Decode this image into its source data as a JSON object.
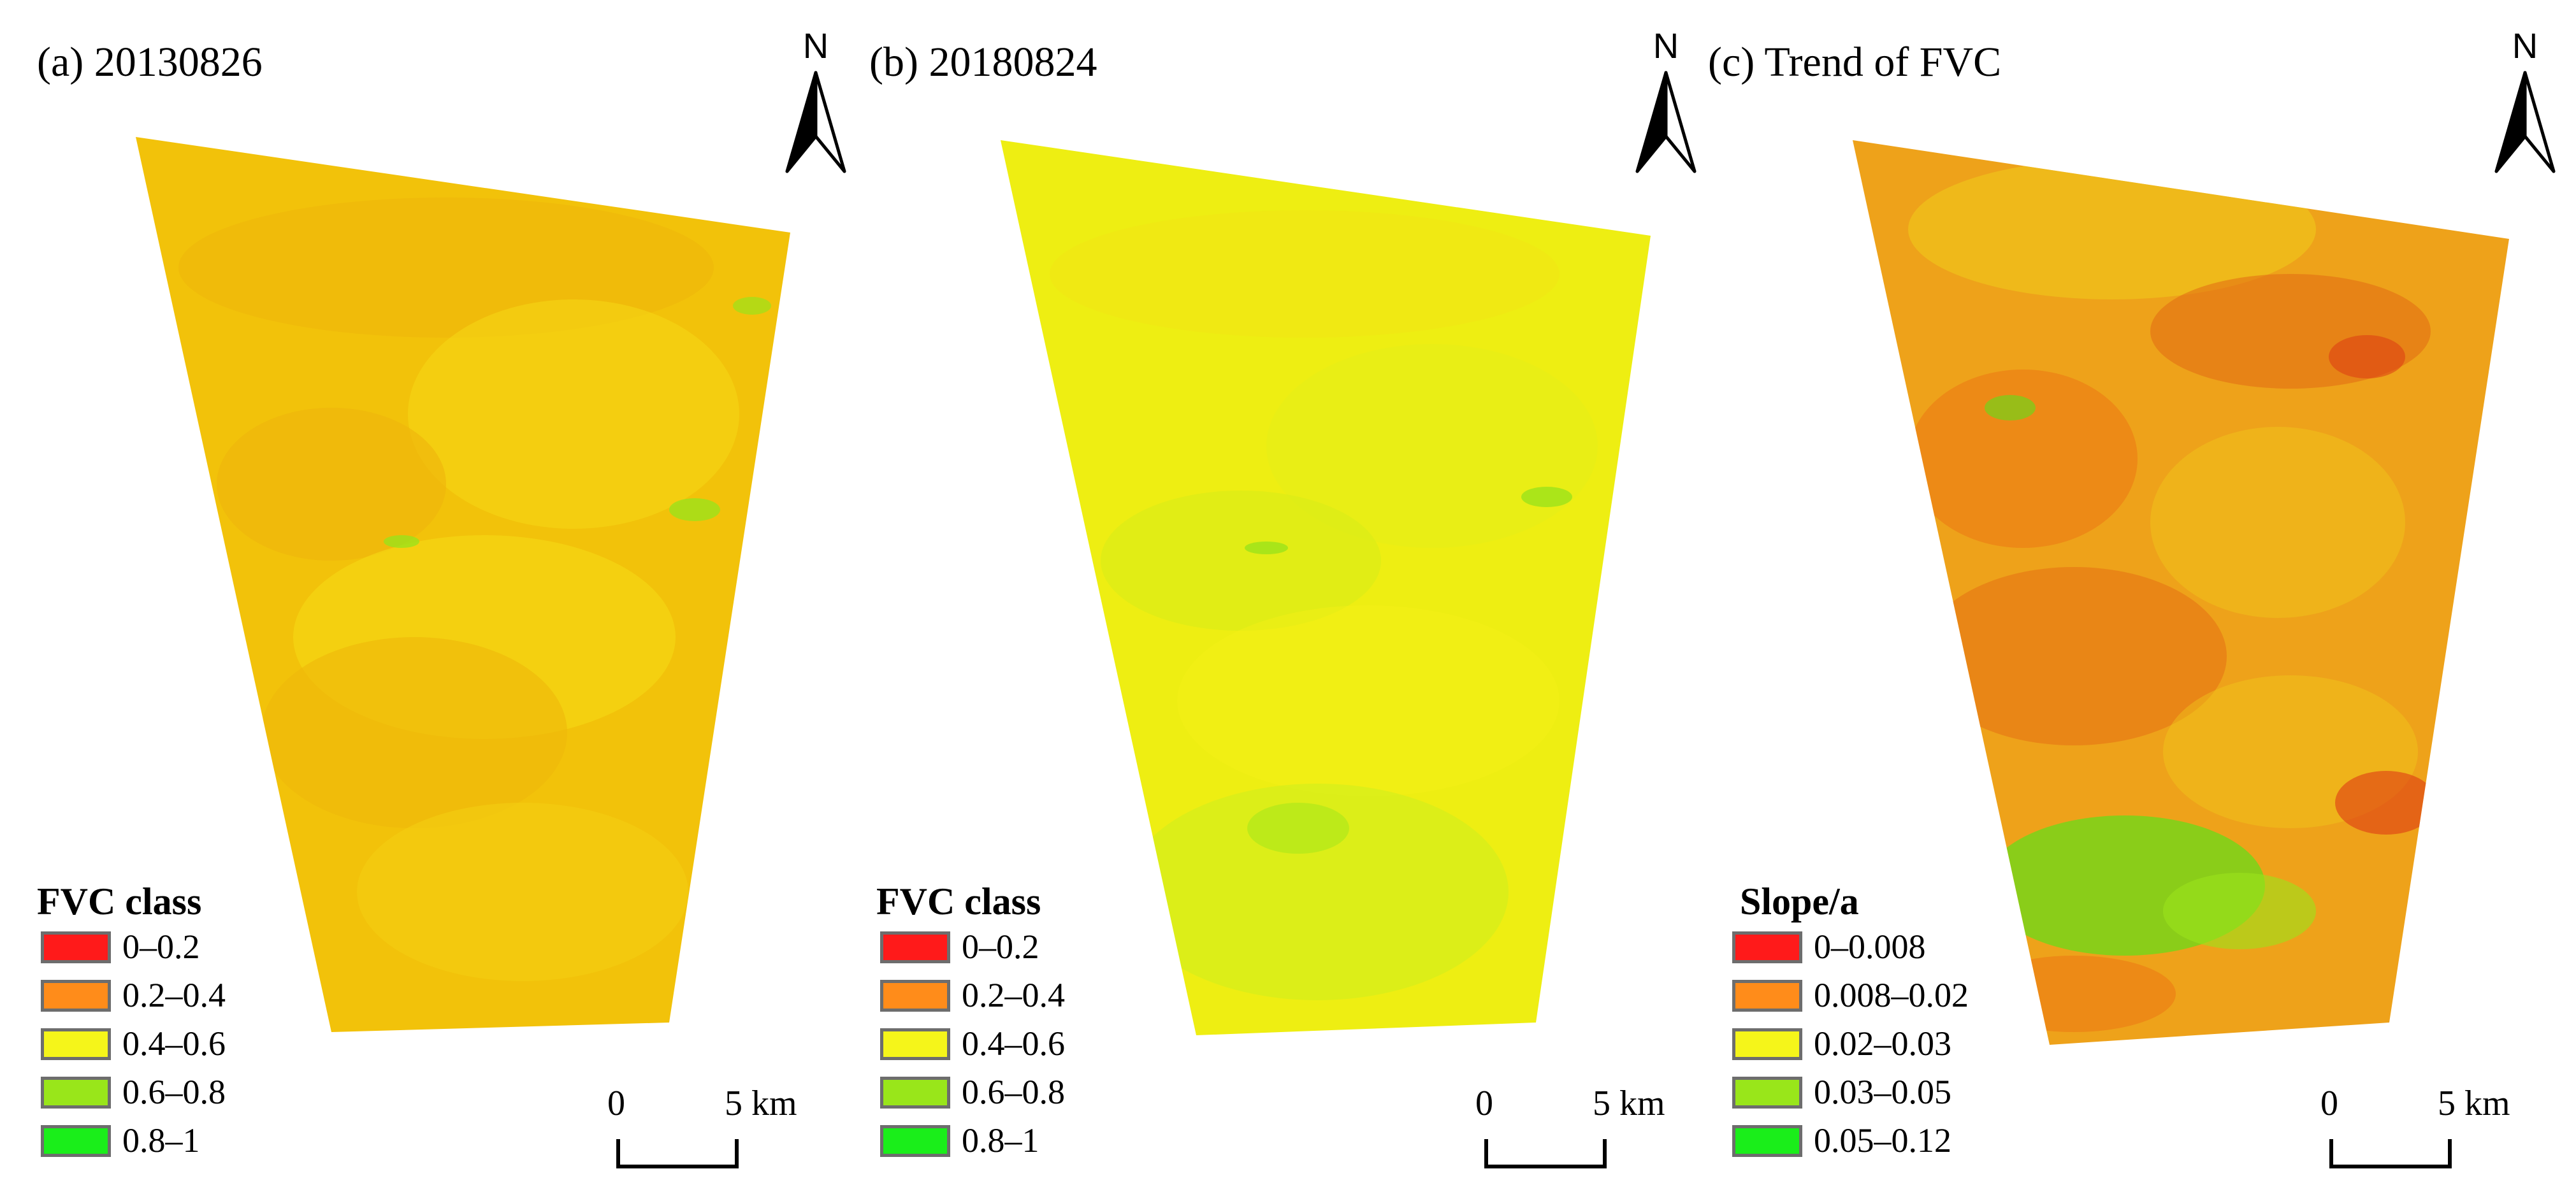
{
  "panels": [
    {
      "title": "(a) 20130826",
      "north_label": "N",
      "legend": {
        "title": "FVC class",
        "items": [
          {
            "label": "0–0.2",
            "color": "#ff1a1a"
          },
          {
            "label": "0.2–0.4",
            "color": "#ff8c1a"
          },
          {
            "label": "0.4–0.6",
            "color": "#f5f51a"
          },
          {
            "label": "0.6–0.8",
            "color": "#99e61a"
          },
          {
            "label": "0.8–1",
            "color": "#1aee1a"
          }
        ]
      },
      "scalebar": {
        "zero": "0",
        "end": "5 km"
      },
      "map": {
        "base_color": "#f2c20a",
        "dominant_class": "0.2–0.4 / 0.4–0.6"
      }
    },
    {
      "title": "(b) 20180824",
      "north_label": "N",
      "legend": {
        "title": "FVC class",
        "items": [
          {
            "label": "0–0.2",
            "color": "#ff1a1a"
          },
          {
            "label": "0.2–0.4",
            "color": "#ff8c1a"
          },
          {
            "label": "0.4–0.6",
            "color": "#f5f51a"
          },
          {
            "label": "0.6–0.8",
            "color": "#99e61a"
          },
          {
            "label": "0.8–1",
            "color": "#1aee1a"
          }
        ]
      },
      "scalebar": {
        "zero": "0",
        "end": "5 km"
      },
      "map": {
        "base_color": "#eeee12",
        "dominant_class": "0.4–0.6"
      }
    },
    {
      "title": "(c) Trend of FVC",
      "north_label": "N",
      "legend": {
        "title": "Slope/a",
        "items": [
          {
            "label": "0–0.008",
            "color": "#ff1a1a"
          },
          {
            "label": "0.008–0.02",
            "color": "#ff8c1a"
          },
          {
            "label": "0.02–0.03",
            "color": "#f5f51a"
          },
          {
            "label": "0.03–0.05",
            "color": "#99e61a"
          },
          {
            "label": "0.05–0.12",
            "color": "#1aee1a"
          }
        ]
      },
      "scalebar": {
        "zero": "0",
        "end": "5 km"
      },
      "map": {
        "base_color": "#eea21a",
        "dominant_class": "0.008–0.02"
      }
    }
  ]
}
